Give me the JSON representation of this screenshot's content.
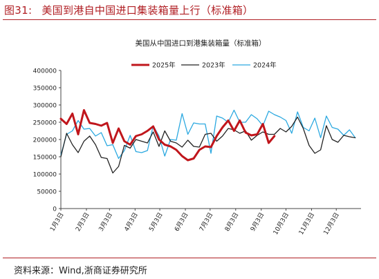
{
  "figure": {
    "number": "图31:",
    "title": "美国到港自中国进口集装箱量上行（标准箱）",
    "source": "资料来源：Wind,浙商证券研究所"
  },
  "colors": {
    "title": "#b01e23",
    "series_2025": "#c0161c",
    "series_2023": "#222222",
    "series_2024": "#2aa8e0"
  },
  "chart_data": {
    "type": "line",
    "title": "美国从中国进口到港集装箱量（标准箱）",
    "ylim": [
      0,
      400000
    ],
    "yticks": [
      0,
      50000,
      100000,
      150000,
      200000,
      250000,
      300000,
      350000,
      400000
    ],
    "x_axis": {
      "range": [
        "1月3日",
        "1月2日"
      ],
      "tick_labels": [
        "1月3日",
        "2月3日",
        "3月3日",
        "4月3日",
        "5月3日",
        "6月3日",
        "7月3日",
        "8月3日",
        "9月3日",
        "10月3日",
        "11月3日",
        "12月3日"
      ]
    },
    "grid": false,
    "legend": "top-center",
    "series": [
      {
        "name": "2025年",
        "color": "#c0161c",
        "x": [
          "1月3日",
          "1月10日",
          "1月17日",
          "1月24日",
          "1月31日",
          "2月7日",
          "2月14日",
          "2月21日",
          "2月28日",
          "3月7日",
          "3月14日",
          "3月21日",
          "3月28日",
          "4月4日",
          "4月11日",
          "4月18日",
          "4月25日",
          "5月2日",
          "5月9日",
          "5月16日",
          "5月23日",
          "5月30日",
          "6月6日",
          "6月13日",
          "6月20日",
          "6月27日",
          "7月4日",
          "7月11日",
          "7月18日",
          "7月25日",
          "8月1日",
          "8月8日",
          "8月15日",
          "8月22日",
          "8月29日",
          "9月5日",
          "9月12日",
          "9月19日"
        ],
        "y": [
          260000,
          245000,
          275000,
          215000,
          285000,
          248000,
          245000,
          240000,
          248000,
          190000,
          232000,
          195000,
          185000,
          210000,
          215000,
          225000,
          238000,
          200000,
          185000,
          180000,
          170000,
          152000,
          140000,
          145000,
          170000,
          180000,
          178000,
          210000,
          235000,
          255000,
          225000,
          255000,
          220000,
          212000,
          215000,
          245000,
          190000,
          210000
        ]
      },
      {
        "name": "2023年",
        "color": "#222222",
        "x": [
          "1月3日",
          "1月10日",
          "1月17日",
          "1月24日",
          "1月31日",
          "2月7日",
          "2月14日",
          "2月21日",
          "2月28日",
          "3月7日",
          "3月14日",
          "3月21日",
          "3月28日",
          "4月4日",
          "4月11日",
          "4月18日",
          "4月25日",
          "5月2日",
          "5月9日",
          "5月16日",
          "5月23日",
          "5月30日",
          "6月6日",
          "6月13日",
          "6月20日",
          "6月27日",
          "7月4日",
          "7月11日",
          "7月18日",
          "7月25日",
          "8月1日",
          "8月8日",
          "8月15日",
          "8月22日",
          "8月29日",
          "9月5日",
          "9月12日",
          "9月19日",
          "9月26日",
          "10月3日",
          "10月10日",
          "10月17日",
          "10月24日",
          "10月31日",
          "11月7日",
          "11月14日",
          "11月21日",
          "11月28日",
          "12月5日",
          "12月12日",
          "12月19日",
          "12月26日"
        ],
        "y": [
          150000,
          218000,
          185000,
          162000,
          195000,
          210000,
          185000,
          148000,
          145000,
          103000,
          122000,
          183000,
          175000,
          200000,
          195000,
          190000,
          222000,
          180000,
          225000,
          195000,
          190000,
          178000,
          198000,
          180000,
          178000,
          215000,
          218000,
          195000,
          210000,
          232000,
          228000,
          218000,
          225000,
          198000,
          212000,
          222000,
          215000,
          215000,
          232000,
          222000,
          238000,
          265000,
          232000,
          183000,
          160000,
          170000,
          240000,
          200000,
          192000,
          212000,
          208000,
          205000
        ]
      },
      {
        "name": "2024年",
        "color": "#2aa8e0",
        "x": [
          "1月3日",
          "1月10日",
          "1月17日",
          "1月24日",
          "1月31日",
          "2月7日",
          "2月14日",
          "2月21日",
          "2月28日",
          "3月7日",
          "3月14日",
          "3月21日",
          "3月28日",
          "4月4日",
          "4月11日",
          "4月18日",
          "4月25日",
          "5月2日",
          "5月9日",
          "5月16日",
          "5月23日",
          "5月30日",
          "6月6日",
          "6月13日",
          "6月20日",
          "6月27日",
          "7月4日",
          "7月11日",
          "7月18日",
          "7月25日",
          "8月1日",
          "8月8日",
          "8月15日",
          "8月22日",
          "8月29日",
          "9月5日",
          "9月12日",
          "9月19日",
          "9月26日",
          "10月3日",
          "10月10日",
          "10月17日",
          "10月24日",
          "10月31日",
          "11月7日",
          "11月14日",
          "11月21日",
          "11月28日",
          "12月5日",
          "12月12日",
          "12月19日",
          "12月26日"
        ],
        "y": [
          155000,
          215000,
          225000,
          255000,
          230000,
          232000,
          210000,
          220000,
          182000,
          185000,
          145000,
          168000,
          212000,
          165000,
          162000,
          168000,
          240000,
          210000,
          152000,
          200000,
          198000,
          275000,
          215000,
          248000,
          245000,
          245000,
          160000,
          268000,
          262000,
          250000,
          285000,
          250000,
          250000,
          272000,
          260000,
          240000,
          282000,
          272000,
          265000,
          255000,
          218000,
          280000,
          235000,
          225000,
          262000,
          205000,
          268000,
          235000,
          230000,
          212000,
          228000,
          205000
        ]
      }
    ]
  }
}
